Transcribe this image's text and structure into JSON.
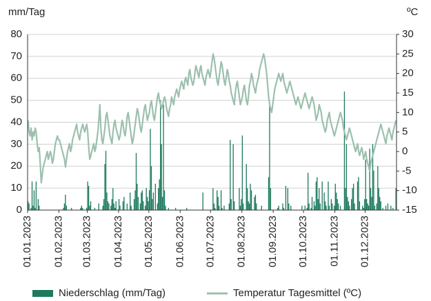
{
  "chart_data": {
    "type": "combo",
    "ylabel": "mm/Tag",
    "y2label": "ºC",
    "xlim": [
      0,
      365
    ],
    "xticks": [
      {
        "value": 0,
        "label": "01.01.2023"
      },
      {
        "value": 31,
        "label": "01.02.2023"
      },
      {
        "value": 59,
        "label": "01.03.2023"
      },
      {
        "value": 90,
        "label": "01.04.2023"
      },
      {
        "value": 120,
        "label": "01.05.2023"
      },
      {
        "value": 151,
        "label": "01.06.2023"
      },
      {
        "value": 181,
        "label": "01.07.2023"
      },
      {
        "value": 212,
        "label": "01.08.2023"
      },
      {
        "value": 243,
        "label": "01.09.2023"
      },
      {
        "value": 273,
        "label": "01.10.2023"
      },
      {
        "value": 304,
        "label": "01.11.2023"
      },
      {
        "value": 334,
        "label": "01.12.2023"
      }
    ],
    "ylim": [
      0,
      80
    ],
    "yticks": [
      0,
      10,
      20,
      30,
      40,
      50,
      60,
      70,
      80
    ],
    "y2lim": [
      -15,
      30
    ],
    "y2ticks": [
      -15,
      -10,
      -5,
      0,
      5,
      10,
      15,
      20,
      25,
      30
    ],
    "grid": true,
    "x": [
      0,
      1,
      2,
      3,
      4,
      5,
      6,
      7,
      8,
      9,
      10,
      11,
      12,
      13,
      14,
      15,
      16,
      17,
      18,
      19,
      20,
      21,
      22,
      23,
      24,
      25,
      26,
      27,
      28,
      29,
      30,
      31,
      32,
      33,
      34,
      35,
      36,
      37,
      38,
      39,
      40,
      41,
      42,
      43,
      44,
      45,
      46,
      47,
      48,
      49,
      50,
      51,
      52,
      53,
      54,
      55,
      56,
      57,
      58,
      59,
      60,
      61,
      62,
      63,
      64,
      65,
      66,
      67,
      68,
      69,
      70,
      71,
      72,
      73,
      74,
      75,
      76,
      77,
      78,
      79,
      80,
      81,
      82,
      83,
      84,
      85,
      86,
      87,
      88,
      89,
      90,
      91,
      92,
      93,
      94,
      95,
      96,
      97,
      98,
      99,
      100,
      101,
      102,
      103,
      104,
      105,
      106,
      107,
      108,
      109,
      110,
      111,
      112,
      113,
      114,
      115,
      116,
      117,
      118,
      119,
      120,
      121,
      122,
      123,
      124,
      125,
      126,
      127,
      128,
      129,
      130,
      131,
      132,
      133,
      134,
      135,
      136,
      137,
      138,
      139,
      140,
      141,
      142,
      143,
      144,
      145,
      146,
      147,
      148,
      149,
      150,
      151,
      152,
      153,
      154,
      155,
      156,
      157,
      158,
      159,
      160,
      161,
      162,
      163,
      164,
      165,
      166,
      167,
      168,
      169,
      170,
      171,
      172,
      173,
      174,
      175,
      176,
      177,
      178,
      179,
      180,
      181,
      182,
      183,
      184,
      185,
      186,
      187,
      188,
      189,
      190,
      191,
      192,
      193,
      194,
      195,
      196,
      197,
      198,
      199,
      200,
      201,
      202,
      203,
      204,
      205,
      206,
      207,
      208,
      209,
      210,
      211,
      212,
      213,
      214,
      215,
      216,
      217,
      218,
      219,
      220,
      221,
      222,
      223,
      224,
      225,
      226,
      227,
      228,
      229,
      230,
      231,
      232,
      233,
      234,
      235,
      236,
      237,
      238,
      239,
      240,
      241,
      242,
      243,
      244,
      245,
      246,
      247,
      248,
      249,
      250,
      251,
      252,
      253,
      254,
      255,
      256,
      257,
      258,
      259,
      260,
      261,
      262,
      263,
      264,
      265,
      266,
      267,
      268,
      269,
      270,
      271,
      272,
      273,
      274,
      275,
      276,
      277,
      278,
      279,
      280,
      281,
      282,
      283,
      284,
      285,
      286,
      287,
      288,
      289,
      290,
      291,
      292,
      293,
      294,
      295,
      296,
      297,
      298,
      299,
      300,
      301,
      302,
      303,
      304,
      305,
      306,
      307,
      308,
      309,
      310,
      311,
      312,
      313,
      314,
      315,
      316,
      317,
      318,
      319,
      320,
      321,
      322,
      323,
      324,
      325,
      326,
      327,
      328,
      329,
      330,
      331,
      332,
      333,
      334,
      335,
      336,
      337,
      338,
      339,
      340,
      341,
      342,
      343,
      344,
      345,
      346,
      347,
      348,
      349,
      350,
      351,
      352,
      353,
      354,
      355,
      356,
      357,
      358,
      359,
      360,
      361,
      362,
      363,
      364
    ],
    "series": [
      {
        "name": "Niederschlag (mm/Tag)",
        "type": "bar",
        "color": "#1d7a5f",
        "values": [
          4,
          3,
          0,
          1,
          13,
          2,
          9,
          1,
          13,
          0,
          5,
          2,
          0,
          0,
          0,
          0,
          0,
          0,
          0,
          0,
          0,
          0,
          0,
          0,
          0,
          0,
          0,
          0,
          0,
          0,
          0,
          0,
          0,
          0,
          0,
          1,
          3,
          7,
          2,
          0,
          0,
          0,
          0,
          1,
          0,
          0,
          0,
          0,
          0,
          0,
          0,
          0,
          1,
          2,
          1,
          0,
          0,
          0,
          1,
          13,
          11,
          2,
          4,
          0,
          0,
          0,
          1,
          0,
          0,
          0,
          3,
          0,
          0,
          0,
          2,
          5,
          21,
          27,
          8,
          4,
          3,
          0,
          2,
          5,
          10,
          3,
          1,
          4,
          0,
          0,
          5,
          2,
          0,
          0,
          4,
          6,
          0,
          0,
          3,
          0,
          0,
          8,
          2,
          0,
          0,
          5,
          9,
          26,
          12,
          6,
          0,
          3,
          8,
          9,
          4,
          0,
          2,
          10,
          6,
          4,
          9,
          37,
          20,
          5,
          8,
          0,
          12,
          0,
          3,
          10,
          14,
          50,
          30,
          6,
          48,
          9,
          2,
          0,
          0,
          1,
          0,
          0,
          0,
          0,
          0,
          0,
          1,
          0,
          0,
          0,
          0,
          0,
          0,
          0,
          0,
          0,
          0,
          1,
          0,
          0,
          0,
          0,
          0,
          0,
          0,
          0,
          0,
          0,
          0,
          0,
          0,
          0,
          0,
          8,
          0,
          0,
          0,
          0,
          0,
          0,
          0,
          0,
          0,
          10,
          3,
          1,
          0,
          9,
          6,
          2,
          0,
          9,
          1,
          0,
          2,
          0,
          0,
          0,
          0,
          3,
          32,
          5,
          0,
          30,
          4,
          0,
          0,
          0,
          0,
          10,
          2,
          5,
          34,
          3,
          0,
          0,
          21,
          10,
          4,
          3,
          12,
          9,
          0,
          0,
          6,
          7,
          3,
          0,
          0,
          0,
          0,
          2,
          0,
          0,
          0,
          0,
          0,
          0,
          15,
          48,
          10,
          0,
          0,
          0,
          0,
          0,
          0,
          1,
          2,
          0,
          0,
          0,
          3,
          1,
          0,
          11,
          0,
          10,
          3,
          0,
          2,
          0,
          0,
          0,
          0,
          0,
          0,
          0,
          0,
          0,
          0,
          2,
          0,
          0,
          2,
          0,
          1,
          17,
          3,
          0,
          1,
          6,
          0,
          4,
          2,
          13,
          15,
          5,
          10,
          3,
          0,
          13,
          0,
          8,
          4,
          2,
          0,
          13,
          2,
          0,
          5,
          3,
          0,
          2,
          12,
          8,
          5,
          3,
          0,
          2,
          0,
          0,
          0,
          54,
          10,
          30,
          6,
          4,
          2,
          0,
          5,
          10,
          12,
          3,
          0,
          0,
          13,
          15,
          4,
          0,
          0,
          2,
          1,
          5,
          23,
          5,
          3,
          2,
          28,
          10,
          6,
          30,
          18,
          2,
          0,
          3,
          20,
          10,
          6,
          4,
          0,
          1,
          0,
          0,
          2,
          0,
          3,
          0,
          0,
          2,
          0,
          1,
          0,
          0,
          10
        ]
      },
      {
        "name": "Temperatur Tagesmittel (ºC)",
        "type": "line",
        "axis": "y2",
        "color": "#9cc0ad",
        "values": [
          8,
          5,
          4,
          6,
          3,
          5,
          4,
          6,
          5,
          2,
          0,
          1,
          -3,
          -8,
          -6,
          -4,
          -3,
          -2,
          -1,
          0,
          -2,
          -1,
          0,
          -1,
          -3,
          -2,
          0,
          2,
          3,
          4,
          3,
          3,
          2,
          1,
          0,
          -1,
          -2,
          -4,
          -2,
          0,
          1,
          2,
          0,
          1,
          3,
          4,
          5,
          6,
          7,
          5,
          4,
          3,
          5,
          6,
          7,
          6,
          5,
          6,
          7,
          5,
          1,
          -2,
          -1,
          0,
          1,
          2,
          0,
          1,
          3,
          5,
          8,
          12,
          6,
          3,
          2,
          4,
          6,
          9,
          10,
          8,
          6,
          4,
          3,
          2,
          5,
          7,
          8,
          6,
          5,
          4,
          3,
          4,
          6,
          8,
          7,
          5,
          4,
          6,
          9,
          10,
          8,
          6,
          4,
          2,
          3,
          5,
          7,
          9,
          11,
          10,
          8,
          6,
          5,
          7,
          9,
          11,
          12,
          10,
          8,
          9,
          10,
          12,
          13,
          11,
          9,
          8,
          10,
          12,
          14,
          15,
          13,
          12,
          11,
          12,
          13,
          14,
          13,
          11,
          10,
          9,
          11,
          12,
          14,
          13,
          12,
          14,
          15,
          16,
          15,
          14,
          16,
          17,
          18,
          17,
          16,
          18,
          19,
          18,
          17,
          20,
          21,
          19,
          18,
          17,
          18,
          20,
          22,
          21,
          20,
          19,
          21,
          22,
          20,
          19,
          18,
          17,
          19,
          20,
          21,
          20,
          19,
          21,
          23,
          25,
          24,
          22,
          20,
          18,
          17,
          19,
          21,
          23,
          22,
          20,
          18,
          17,
          19,
          21,
          20,
          18,
          17,
          15,
          14,
          13,
          12,
          15,
          17,
          18,
          16,
          14,
          12,
          13,
          14,
          16,
          17,
          15,
          13,
          12,
          14,
          17,
          18,
          20,
          19,
          17,
          16,
          15,
          17,
          18,
          19,
          21,
          22,
          23,
          24,
          25,
          24,
          22,
          20,
          17,
          14,
          12,
          11,
          10,
          12,
          14,
          16,
          17,
          18,
          19,
          20,
          19,
          18,
          19,
          20,
          18,
          17,
          16,
          15,
          16,
          17,
          18,
          17,
          16,
          15,
          14,
          13,
          12,
          13,
          14,
          13,
          12,
          11,
          12,
          13,
          14,
          15,
          14,
          13,
          12,
          11,
          12,
          13,
          14,
          13,
          12,
          10,
          8,
          9,
          10,
          12,
          11,
          10,
          8,
          7,
          6,
          5,
          6,
          8,
          9,
          10,
          8,
          7,
          6,
          5,
          4,
          5,
          6,
          7,
          8,
          9,
          10,
          9,
          8,
          6,
          5,
          4,
          3,
          4,
          5,
          6,
          5,
          4,
          3,
          2,
          1,
          0,
          1,
          2,
          0,
          -1,
          0,
          1,
          0,
          -2,
          -1,
          0,
          -2,
          -3,
          -4,
          -5,
          -3,
          -2,
          -1,
          0,
          1,
          2,
          3,
          4,
          5,
          6,
          7,
          6,
          5,
          4,
          3,
          2,
          4,
          5,
          6,
          5,
          4,
          3,
          5,
          6,
          7,
          8
        ]
      }
    ]
  }
}
